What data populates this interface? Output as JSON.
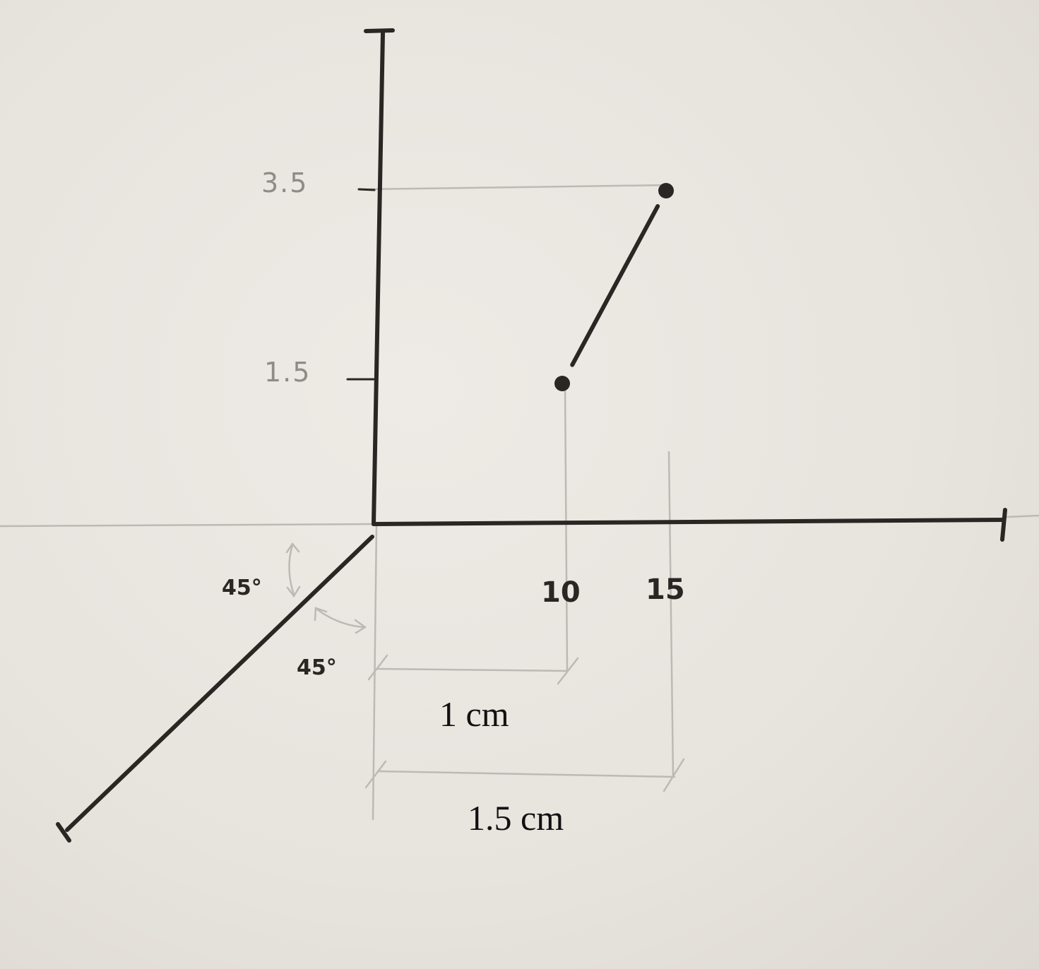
{
  "y_ticks": {
    "upper": "3.5",
    "lower": "1.5"
  },
  "x_ticks": {
    "first": "10",
    "second": "15"
  },
  "angles": {
    "upper": "45°",
    "lower": "45°"
  },
  "dimensions": {
    "short": "1 cm",
    "long": "1.5 cm"
  },
  "points": [
    {
      "x": 10,
      "y": 1.5
    },
    {
      "x": 15,
      "y": 3.5
    }
  ],
  "colors": {
    "ink": "#2a2623",
    "pencil": "#b9b6b1",
    "paper": "#e9e6e1"
  }
}
